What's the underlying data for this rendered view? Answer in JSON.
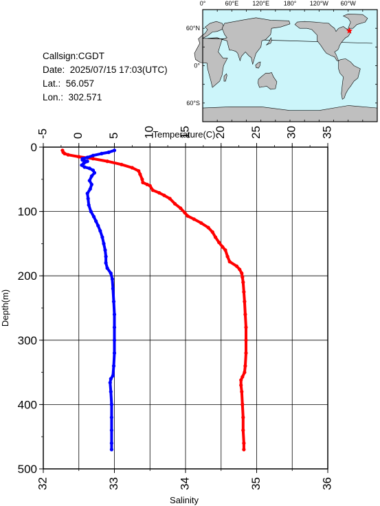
{
  "station": {
    "callsign": "Callsign:CGDT",
    "date": "Date:  2025/07/15 17:03(UTC)",
    "lat": "Lat.:  56.057",
    "lon": "Lon.:  302.571"
  },
  "map": {
    "top_labels": [
      "0°",
      "60°E",
      "120°E",
      "180°",
      "120°W",
      "60°W"
    ],
    "left_labels": [
      "60°N",
      "0°",
      "60°S"
    ],
    "ocean_color": "#ccf5fa",
    "land_color": "#bfbfbf",
    "marker_color": "#ff0000",
    "marker_lon": 302.571,
    "marker_lat": 56.057
  },
  "chart_data": {
    "type": "line",
    "title": "",
    "ylabel": "Depth(m)",
    "ylim": [
      0,
      500
    ],
    "y_ticks": [
      "0",
      "100",
      "200",
      "300",
      "400",
      "500"
    ],
    "grid": true,
    "temperature_axis": {
      "label": "Temperature(C)",
      "position": "top",
      "range": [
        -5,
        35
      ],
      "ticks": [
        "-5",
        "0",
        "5",
        "10",
        "15",
        "20",
        "25",
        "30",
        "35"
      ]
    },
    "salinity_axis": {
      "label": "Salinity",
      "position": "bottom",
      "range": [
        32,
        36
      ],
      "ticks": [
        "32",
        "33",
        "34",
        "35",
        "36"
      ]
    },
    "series": [
      {
        "axis": "temperature",
        "color": "#ff0000",
        "points": [
          [
            -2.3,
            5
          ],
          [
            -2.2,
            8
          ],
          [
            -2.0,
            10
          ],
          [
            -1.5,
            12
          ],
          [
            0,
            15
          ],
          [
            2,
            18
          ],
          [
            4,
            22
          ],
          [
            6,
            27
          ],
          [
            7.5,
            32
          ],
          [
            8.4,
            37
          ],
          [
            8.6,
            42
          ],
          [
            8.9,
            50
          ],
          [
            9.0,
            55
          ],
          [
            9.6,
            58
          ],
          [
            10.0,
            60
          ],
          [
            10.4,
            67
          ],
          [
            11.3,
            71
          ],
          [
            12.0,
            75
          ],
          [
            12.8,
            80
          ],
          [
            13.5,
            88
          ],
          [
            14.3,
            95
          ],
          [
            14.9,
            102
          ],
          [
            15.3,
            107
          ],
          [
            16.2,
            112
          ],
          [
            17.2,
            118
          ],
          [
            18.2,
            125
          ],
          [
            18.8,
            132
          ],
          [
            19.2,
            140
          ],
          [
            19.7,
            148
          ],
          [
            20.2,
            155
          ],
          [
            20.6,
            160
          ],
          [
            20.9,
            170
          ],
          [
            21.2,
            178
          ],
          [
            22.2,
            185
          ],
          [
            22.6,
            190
          ],
          [
            22.9,
            196
          ],
          [
            23.0,
            202
          ],
          [
            23.1,
            210
          ],
          [
            23.2,
            225
          ],
          [
            23.3,
            240
          ],
          [
            23.4,
            260
          ],
          [
            23.5,
            280
          ],
          [
            23.5,
            300
          ],
          [
            23.5,
            320
          ],
          [
            23.4,
            340
          ],
          [
            23.3,
            350
          ],
          [
            23.0,
            357
          ],
          [
            22.8,
            362
          ],
          [
            22.8,
            370
          ],
          [
            22.9,
            380
          ],
          [
            23.0,
            400
          ],
          [
            23.1,
            420
          ],
          [
            23.1,
            440
          ],
          [
            23.2,
            460
          ],
          [
            23.2,
            470
          ]
        ]
      },
      {
        "axis": "salinity",
        "color": "#0000ff",
        "points": [
          [
            33.0,
            5
          ],
          [
            32.92,
            8
          ],
          [
            32.82,
            10
          ],
          [
            32.7,
            13
          ],
          [
            32.62,
            16
          ],
          [
            32.55,
            18
          ],
          [
            32.55,
            20
          ],
          [
            32.62,
            22
          ],
          [
            32.57,
            25
          ],
          [
            32.54,
            28
          ],
          [
            32.58,
            31
          ],
          [
            32.65,
            33
          ],
          [
            32.7,
            36
          ],
          [
            32.72,
            40
          ],
          [
            32.68,
            45
          ],
          [
            32.65,
            52
          ],
          [
            32.68,
            58
          ],
          [
            32.66,
            65
          ],
          [
            32.62,
            72
          ],
          [
            32.63,
            80
          ],
          [
            32.64,
            90
          ],
          [
            32.67,
            100
          ],
          [
            32.71,
            108
          ],
          [
            32.74,
            115
          ],
          [
            32.77,
            122
          ],
          [
            32.8,
            130
          ],
          [
            32.83,
            140
          ],
          [
            32.85,
            150
          ],
          [
            32.87,
            160
          ],
          [
            32.88,
            170
          ],
          [
            32.88,
            180
          ],
          [
            32.9,
            188
          ],
          [
            32.95,
            196
          ],
          [
            32.97,
            205
          ],
          [
            32.98,
            220
          ],
          [
            32.99,
            240
          ],
          [
            33.0,
            260
          ],
          [
            33.0,
            280
          ],
          [
            33.0,
            300
          ],
          [
            33.0,
            320
          ],
          [
            32.99,
            340
          ],
          [
            32.98,
            355
          ],
          [
            32.95,
            360
          ],
          [
            32.94,
            366
          ],
          [
            32.95,
            380
          ],
          [
            32.96,
            400
          ],
          [
            32.96,
            420
          ],
          [
            32.96,
            440
          ],
          [
            32.96,
            460
          ],
          [
            32.96,
            470
          ]
        ]
      }
    ]
  }
}
